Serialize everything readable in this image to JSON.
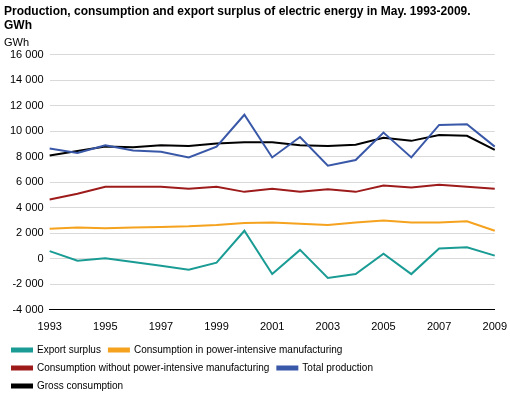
{
  "chart_data": {
    "type": "line",
    "title": [
      "Production, consumption and export surplus of electric energy in May. 1993-2009.",
      "GWh"
    ],
    "y_label": "GWh",
    "categories": [
      "1993",
      null,
      "1995",
      null,
      "1997",
      null,
      "1999",
      null,
      "2001",
      null,
      "2003",
      null,
      "2005",
      null,
      "2007",
      null,
      "2009"
    ],
    "series": [
      {
        "name": "Export surplus",
        "color": "#1a9c95",
        "values": [
          600,
          -150,
          50,
          -250,
          -550,
          -850,
          -300,
          2200,
          -1200,
          700,
          -1500,
          -1200,
          400,
          -1200,
          800,
          900,
          250
        ]
      },
      {
        "name": "Consumption in power-intensive manufacturing",
        "color": "#f5a21e",
        "values": [
          2350,
          2450,
          2400,
          2450,
          2500,
          2550,
          2650,
          2800,
          2850,
          2750,
          2650,
          2850,
          3000,
          2850,
          2850,
          2950,
          2200
        ]
      },
      {
        "name": "Consumption without power-intensive manufacturing",
        "color": "#9e1b1b",
        "values": [
          4650,
          5100,
          5650,
          5650,
          5650,
          5500,
          5650,
          5250,
          5500,
          5250,
          5450,
          5250,
          5750,
          5600,
          5800,
          5650,
          5500
        ]
      },
      {
        "name": "Total production",
        "color": "#3a58a8",
        "values": [
          8650,
          8300,
          8900,
          8500,
          8400,
          7950,
          8800,
          11300,
          7950,
          9550,
          7300,
          7750,
          9900,
          7950,
          10500,
          10550,
          8800
        ]
      },
      {
        "name": "Gross consumption",
        "color": "#000000",
        "values": [
          8100,
          8450,
          8800,
          8750,
          8900,
          8850,
          9050,
          9150,
          9150,
          8900,
          8850,
          8950,
          9500,
          9250,
          9700,
          9650,
          8550
        ]
      }
    ],
    "ylim": [
      -4000,
      16000
    ],
    "yticks": [
      {
        "value": -4000,
        "label": "-4 000"
      },
      {
        "value": -2000,
        "label": "-2 000"
      },
      0,
      {
        "value": 2000,
        "label": "2 000"
      },
      {
        "value": 4000,
        "label": "4 000"
      },
      {
        "value": 6000,
        "label": "6 000"
      },
      {
        "value": 8000,
        "label": "8 000"
      },
      {
        "value": 10000,
        "label": "10 000"
      },
      {
        "value": 12000,
        "label": "12 000"
      },
      {
        "value": 14000,
        "label": "14 000"
      },
      {
        "value": 16000,
        "label": "16 000"
      }
    ],
    "grid": true,
    "legend": "bottom"
  }
}
